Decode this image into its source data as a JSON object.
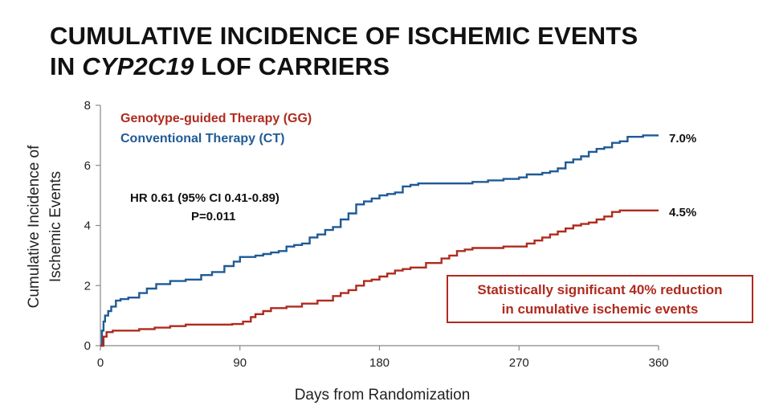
{
  "title": {
    "line1": "CUMULATIVE INCIDENCE OF ISCHEMIC EVENTS",
    "line2_prefix": "IN ",
    "line2_gene": "CYP2C19",
    "line2_suffix": " LOF CARRIERS"
  },
  "annotation": {
    "hr": "HR 0.61 (95% CI 0.41-0.89)",
    "p": "P=0.011"
  },
  "callout": {
    "line1": "Statistically significant 40% reduction",
    "line2": "in cumulative ischemic events"
  },
  "colors": {
    "gg": "#b02a1e",
    "ct": "#1f5a96"
  },
  "chart_data": {
    "type": "line",
    "xlabel": "Days from Randomization",
    "ylabel_line1": "Cumulative Incidence of",
    "ylabel_line2": "Ischemic Events",
    "xlim": [
      0,
      360
    ],
    "ylim": [
      0,
      8
    ],
    "xticks": [
      0,
      90,
      180,
      270,
      360
    ],
    "yticks": [
      0,
      2,
      4,
      6,
      8
    ],
    "grid": false,
    "legend_position": "top-left",
    "series": [
      {
        "name": "Conventional Therapy (CT)",
        "end_label": "7.0%",
        "color": "#1f5a96",
        "x": [
          0,
          1,
          2,
          3,
          5,
          7,
          10,
          13,
          18,
          25,
          30,
          36,
          45,
          55,
          65,
          72,
          80,
          86,
          90,
          95,
          100,
          105,
          110,
          115,
          120,
          125,
          130,
          135,
          140,
          145,
          150,
          155,
          160,
          165,
          170,
          175,
          180,
          185,
          190,
          195,
          200,
          205,
          210,
          220,
          230,
          240,
          250,
          260,
          270,
          275,
          280,
          285,
          290,
          295,
          300,
          305,
          310,
          315,
          320,
          325,
          330,
          335,
          340,
          345,
          350,
          360
        ],
        "y": [
          0,
          0.5,
          0.8,
          1.0,
          1.15,
          1.3,
          1.5,
          1.55,
          1.6,
          1.75,
          1.9,
          2.05,
          2.15,
          2.2,
          2.35,
          2.45,
          2.65,
          2.8,
          2.95,
          2.95,
          3.0,
          3.05,
          3.1,
          3.15,
          3.3,
          3.35,
          3.4,
          3.6,
          3.7,
          3.85,
          3.95,
          4.2,
          4.4,
          4.7,
          4.8,
          4.9,
          5.0,
          5.05,
          5.1,
          5.3,
          5.35,
          5.4,
          5.4,
          5.4,
          5.4,
          5.45,
          5.5,
          5.55,
          5.6,
          5.7,
          5.7,
          5.75,
          5.8,
          5.9,
          6.1,
          6.2,
          6.3,
          6.45,
          6.55,
          6.6,
          6.75,
          6.8,
          6.95,
          6.95,
          7.0,
          7.0
        ]
      },
      {
        "name": "Genotype-guided Therapy (GG)",
        "end_label": "4.5%",
        "color": "#b02a1e",
        "x": [
          0,
          2,
          4,
          8,
          15,
          25,
          35,
          45,
          55,
          65,
          75,
          85,
          92,
          97,
          100,
          105,
          110,
          120,
          130,
          140,
          150,
          155,
          160,
          165,
          170,
          175,
          180,
          185,
          190,
          195,
          200,
          210,
          220,
          225,
          230,
          235,
          240,
          250,
          260,
          270,
          275,
          280,
          285,
          290,
          295,
          300,
          305,
          310,
          315,
          320,
          325,
          330,
          335,
          340,
          350,
          360
        ],
        "y": [
          0,
          0.3,
          0.45,
          0.5,
          0.5,
          0.55,
          0.6,
          0.65,
          0.7,
          0.7,
          0.7,
          0.72,
          0.8,
          0.95,
          1.05,
          1.15,
          1.25,
          1.3,
          1.4,
          1.5,
          1.65,
          1.75,
          1.85,
          2.0,
          2.15,
          2.2,
          2.3,
          2.4,
          2.5,
          2.55,
          2.6,
          2.75,
          2.9,
          3.0,
          3.15,
          3.2,
          3.25,
          3.25,
          3.3,
          3.3,
          3.4,
          3.5,
          3.6,
          3.7,
          3.8,
          3.9,
          4.0,
          4.05,
          4.1,
          4.2,
          4.3,
          4.45,
          4.5,
          4.5,
          4.5,
          4.5
        ]
      }
    ]
  }
}
